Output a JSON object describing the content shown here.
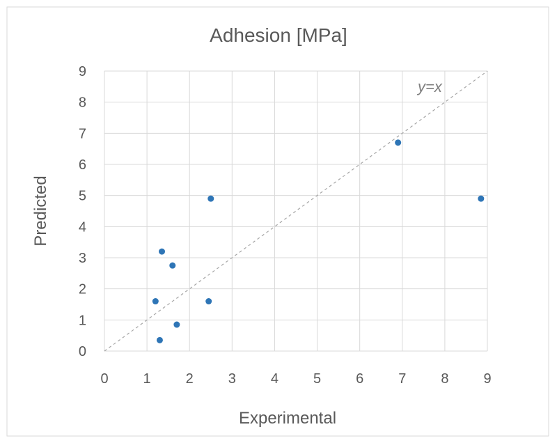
{
  "chart_data": {
    "type": "scatter",
    "title": "Adhesion [MPa]",
    "xlabel": "Experimental",
    "ylabel": "Predicted",
    "xlim": [
      0,
      9
    ],
    "ylim": [
      0,
      9
    ],
    "x_ticks": [
      "0",
      "1",
      "2",
      "3",
      "4",
      "5",
      "6",
      "7",
      "8",
      "9"
    ],
    "y_ticks": [
      "0",
      "1",
      "2",
      "3",
      "4",
      "5",
      "6",
      "7",
      "8",
      "9"
    ],
    "grid": true,
    "legend": "none",
    "series": [
      {
        "color": "#2e75b6",
        "points": [
          {
            "x": 1.2,
            "y": 1.6
          },
          {
            "x": 1.3,
            "y": 0.35
          },
          {
            "x": 1.35,
            "y": 3.2
          },
          {
            "x": 1.6,
            "y": 2.75
          },
          {
            "x": 1.7,
            "y": 0.85
          },
          {
            "x": 2.45,
            "y": 1.6
          },
          {
            "x": 2.5,
            "y": 4.9
          },
          {
            "x": 6.9,
            "y": 6.7
          },
          {
            "x": 8.85,
            "y": 4.9
          }
        ]
      }
    ],
    "reference_line": {
      "label": "y=x",
      "style": "dashed",
      "color": "#a6a6a6"
    }
  }
}
